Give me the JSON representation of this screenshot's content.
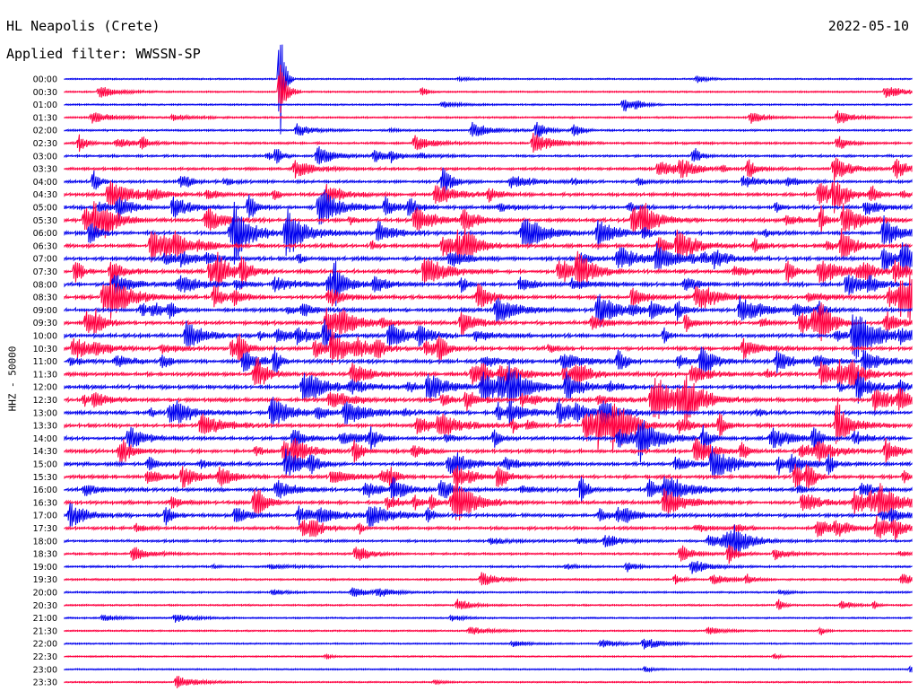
{
  "header": {
    "station": "HL Neapolis (Crete)",
    "filter": "Applied filter: WWSSN-SP",
    "date": "2022-05-10"
  },
  "channel_label": "HHZ - 50000",
  "chart_data": {
    "type": "helicorder",
    "title": "HL Neapolis (Crete)",
    "date": "2022-05-10",
    "channel": "HHZ - 50000",
    "filter": "WWSSN-SP",
    "rows": [
      "00:00",
      "00:30",
      "01:00",
      "01:30",
      "02:00",
      "02:30",
      "03:00",
      "03:30",
      "04:00",
      "04:30",
      "05:00",
      "05:30",
      "06:00",
      "06:30",
      "07:00",
      "07:30",
      "08:00",
      "08:30",
      "09:00",
      "09:30",
      "10:00",
      "10:30",
      "11:00",
      "11:30",
      "12:00",
      "12:30",
      "13:00",
      "13:30",
      "14:00",
      "14:30",
      "15:00",
      "15:30",
      "16:00",
      "16:30",
      "17:00",
      "17:30",
      "18:00",
      "18:30",
      "19:00",
      "19:30",
      "20:00",
      "20:30",
      "21:00",
      "21:30",
      "22:00",
      "22:30",
      "23:00",
      "23:30"
    ],
    "activity": [
      0.1,
      0.14,
      0.16,
      0.22,
      0.28,
      0.36,
      0.42,
      0.52,
      0.62,
      0.7,
      0.78,
      0.82,
      0.86,
      0.88,
      0.9,
      0.92,
      0.9,
      0.88,
      0.86,
      0.86,
      0.86,
      0.86,
      0.88,
      0.88,
      0.88,
      0.88,
      0.88,
      0.86,
      0.84,
      0.82,
      0.8,
      0.8,
      0.82,
      0.84,
      0.8,
      0.66,
      0.44,
      0.36,
      0.3,
      0.26,
      0.22,
      0.18,
      0.14,
      0.12,
      0.12,
      0.1,
      0.08,
      0.08
    ],
    "colors": [
      "#0000ee",
      "#ff0040"
    ]
  }
}
